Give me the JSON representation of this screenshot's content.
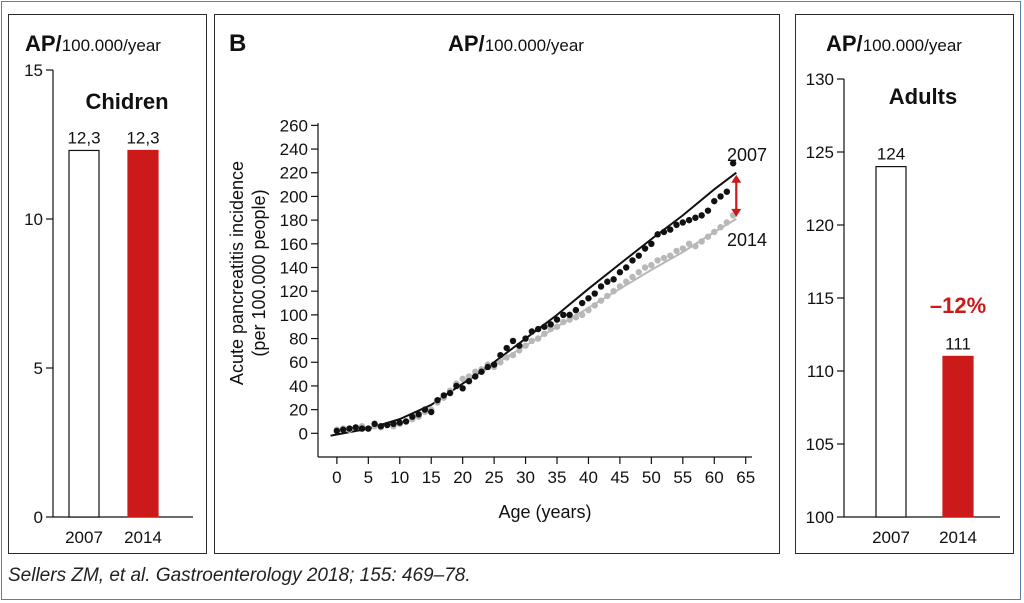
{
  "colors": {
    "accent_red": "#cc1a1a",
    "series_2007": "#111111",
    "series_2014": "#b8b8b8",
    "panel_border": "#2b2b2b",
    "frame_border": "#5a7fa8"
  },
  "citation": "Sellers ZM, et al. Gastroenterology 2018; 155: 469–78.",
  "chart_data": [
    {
      "type": "bar",
      "header_bold": "AP/",
      "header_unit": "100.000/year",
      "title": "Chidren",
      "categories": [
        "2007",
        "2014"
      ],
      "values": [
        12.3,
        12.3
      ],
      "value_labels": [
        "12,3",
        "12,3"
      ],
      "bar_fills": [
        "#ffffff",
        "#cc1a1a"
      ],
      "ylim": [
        0,
        15
      ],
      "yticks": [
        0,
        5,
        10,
        15
      ],
      "ytick_labels": [
        "0",
        "5",
        "10",
        "15"
      ]
    },
    {
      "type": "scatter",
      "panel_label": "B",
      "header_bold": "AP/",
      "header_unit": "100.000/year",
      "xlabel": "Age (years)",
      "ylabel": "Acute pancreatitis incidence",
      "ylabel2": "(per 100.000 people)",
      "xlim": [
        -3,
        66
      ],
      "ylim": [
        -20,
        262
      ],
      "xticks": [
        0,
        5,
        10,
        15,
        20,
        25,
        30,
        35,
        40,
        45,
        50,
        55,
        60,
        65
      ],
      "yticks": [
        0,
        20,
        40,
        60,
        80,
        100,
        120,
        140,
        160,
        180,
        200,
        220,
        240,
        260
      ],
      "arrow_color": "#cc1a1a",
      "series": [
        {
          "name": "2007",
          "color": "#111111",
          "x": [
            0,
            1,
            2,
            3,
            4,
            5,
            6,
            7,
            8,
            9,
            10,
            11,
            12,
            13,
            14,
            15,
            16,
            17,
            18,
            19,
            20,
            21,
            22,
            23,
            24,
            25,
            26,
            27,
            28,
            29,
            30,
            31,
            32,
            33,
            34,
            35,
            36,
            37,
            38,
            39,
            40,
            41,
            42,
            43,
            44,
            45,
            46,
            47,
            48,
            49,
            50,
            51,
            52,
            53,
            54,
            55,
            56,
            57,
            58,
            59,
            60,
            61,
            62,
            63
          ],
          "y": [
            2,
            3,
            4,
            5,
            4,
            4,
            8,
            6,
            7,
            8,
            9,
            10,
            14,
            16,
            20,
            18,
            28,
            32,
            34,
            40,
            38,
            44,
            48,
            52,
            56,
            58,
            66,
            72,
            78,
            74,
            80,
            86,
            88,
            90,
            92,
            96,
            100,
            100,
            104,
            110,
            114,
            118,
            124,
            128,
            130,
            136,
            140,
            146,
            150,
            156,
            160,
            168,
            170,
            172,
            176,
            178,
            180,
            182,
            184,
            188,
            196,
            200,
            204,
            228
          ],
          "fit_x": [
            -1,
            5,
            10,
            15,
            20,
            25,
            30,
            35,
            40,
            45,
            50,
            55,
            60,
            63.5
          ],
          "fit_y": [
            -2,
            4,
            12,
            24,
            42,
            60,
            80,
            100,
            122,
            143,
            164,
            184,
            206,
            220
          ]
        },
        {
          "name": "2014",
          "color": "#b8b8b8",
          "x": [
            0,
            1,
            2,
            3,
            4,
            5,
            6,
            7,
            8,
            9,
            10,
            11,
            12,
            13,
            14,
            15,
            16,
            17,
            18,
            19,
            20,
            21,
            22,
            23,
            24,
            25,
            26,
            27,
            28,
            29,
            30,
            31,
            32,
            33,
            34,
            35,
            36,
            37,
            38,
            39,
            40,
            41,
            42,
            43,
            44,
            45,
            46,
            47,
            48,
            49,
            50,
            51,
            52,
            53,
            54,
            55,
            56,
            57,
            58,
            59,
            60,
            61,
            62,
            63
          ],
          "y": [
            3,
            4,
            3,
            5,
            6,
            4,
            6,
            5,
            7,
            6,
            8,
            10,
            12,
            14,
            18,
            20,
            26,
            30,
            36,
            42,
            46,
            48,
            52,
            54,
            58,
            56,
            60,
            64,
            66,
            70,
            74,
            78,
            80,
            84,
            88,
            90,
            94,
            96,
            98,
            100,
            104,
            108,
            112,
            116,
            120,
            124,
            128,
            132,
            136,
            140,
            142,
            146,
            148,
            150,
            154,
            156,
            160,
            158,
            162,
            166,
            170,
            174,
            178,
            184
          ],
          "fit_x": [
            -1,
            5,
            10,
            15,
            20,
            25,
            30,
            35,
            40,
            45,
            50,
            55,
            60,
            63.5
          ],
          "fit_y": [
            -2,
            4,
            12,
            24,
            42,
            58,
            74,
            90,
            106,
            122,
            138,
            153,
            170,
            181
          ]
        }
      ]
    },
    {
      "type": "bar",
      "header_bold": "AP/",
      "header_unit": "100.000/year",
      "title": "Adults",
      "categories": [
        "2007",
        "2014"
      ],
      "values": [
        124,
        111
      ],
      "value_labels": [
        "124",
        "111"
      ],
      "bar_fills": [
        "#ffffff",
        "#cc1a1a"
      ],
      "ylim": [
        100,
        130
      ],
      "yticks": [
        100,
        105,
        110,
        115,
        120,
        125,
        130
      ],
      "ytick_labels": [
        "100",
        "105",
        "110",
        "115",
        "120",
        "125",
        "130"
      ],
      "annotation": "–12%"
    }
  ]
}
